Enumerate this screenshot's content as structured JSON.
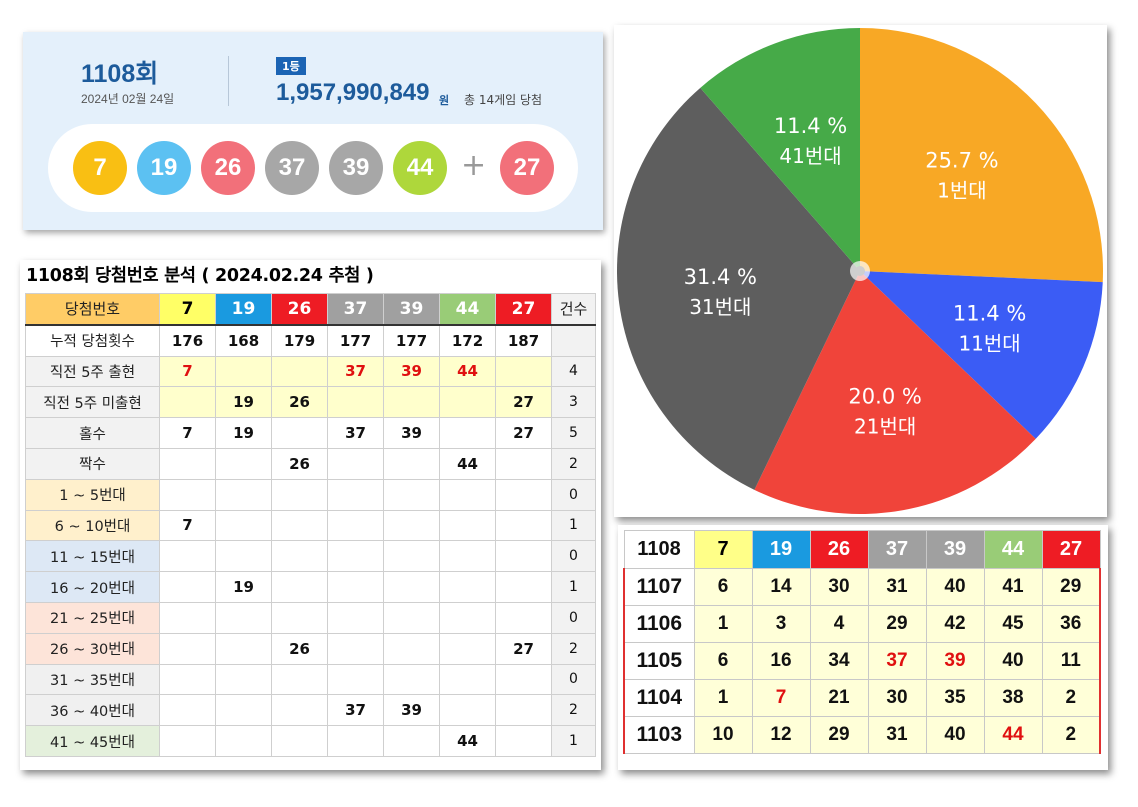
{
  "result": {
    "round": "1108회",
    "date": "2024년 02월 24일",
    "rank_badge": "1등",
    "prize": "1,957,990,849",
    "prize_unit": "원",
    "winners": "총 14게임 당첨",
    "plus": "+",
    "balls": [
      {
        "n": "7",
        "color": "#f9bf13"
      },
      {
        "n": "19",
        "color": "#5cc1f2"
      },
      {
        "n": "26",
        "color": "#f2707a"
      },
      {
        "n": "37",
        "color": "#a7a7a7"
      },
      {
        "n": "39",
        "color": "#a7a7a7"
      },
      {
        "n": "44",
        "color": "#aed73b"
      }
    ],
    "bonus": {
      "n": "27",
      "color": "#f2707a"
    }
  },
  "analysis": {
    "title": "1108회 당첨번호 분석 ( 2024.02.24 추첨 )",
    "header": {
      "label": "당첨번호",
      "count_label": "건수",
      "numbers": [
        {
          "n": "7",
          "bg": "#ffff66",
          "fg": "#000000"
        },
        {
          "n": "19",
          "bg": "#1a9ae0",
          "fg": "#ffffff"
        },
        {
          "n": "26",
          "bg": "#ee1c24",
          "fg": "#ffffff"
        },
        {
          "n": "37",
          "bg": "#a0a0a0",
          "fg": "#ffffff"
        },
        {
          "n": "39",
          "bg": "#a0a0a0",
          "fg": "#ffffff"
        },
        {
          "n": "44",
          "bg": "#99cc77",
          "fg": "#ffffff"
        },
        {
          "n": "27",
          "bg": "#ee1c24",
          "fg": "#ffffff"
        }
      ],
      "label_bg": "#ffcc66"
    },
    "rows": [
      {
        "label": "누적 당첨횟수",
        "label_bg": "#ffffff",
        "cell_bg": "#ffffff",
        "cells": [
          "176",
          "168",
          "179",
          "177",
          "177",
          "172",
          "187"
        ],
        "count": "",
        "red": []
      },
      {
        "label": "직전 5주 출현",
        "label_bg": "#f2f2f2",
        "cell_bg": "#ffffcc",
        "cells": [
          "7",
          "",
          "",
          "37",
          "39",
          "44",
          ""
        ],
        "count": "4",
        "red": [
          0,
          3,
          4,
          5
        ]
      },
      {
        "label": "직전 5주 미출현",
        "label_bg": "#f2f2f2",
        "cell_bg": "#ffffcc",
        "cells": [
          "",
          "19",
          "26",
          "",
          "",
          "",
          "27"
        ],
        "count": "3",
        "red": []
      },
      {
        "label": "홀수",
        "label_bg": "#f2f2f2",
        "cell_bg": "#ffffff",
        "cells": [
          "7",
          "19",
          "",
          "37",
          "39",
          "",
          "27"
        ],
        "count": "5",
        "red": []
      },
      {
        "label": "짝수",
        "label_bg": "#f2f2f2",
        "cell_bg": "#ffffff",
        "cells": [
          "",
          "",
          "26",
          "",
          "",
          "44",
          ""
        ],
        "count": "2",
        "red": []
      },
      {
        "label": "1 ~ 5번대",
        "label_bg": "#fff0cc",
        "cell_bg": "#ffffff",
        "cells": [
          "",
          "",
          "",
          "",
          "",
          "",
          ""
        ],
        "count": "0",
        "red": []
      },
      {
        "label": "6 ~ 10번대",
        "label_bg": "#fff0cc",
        "cell_bg": "#ffffff",
        "cells": [
          "7",
          "",
          "",
          "",
          "",
          "",
          ""
        ],
        "count": "1",
        "red": []
      },
      {
        "label": "11 ~ 15번대",
        "label_bg": "#dde8f5",
        "cell_bg": "#ffffff",
        "cells": [
          "",
          "",
          "",
          "",
          "",
          "",
          ""
        ],
        "count": "0",
        "red": []
      },
      {
        "label": "16 ~ 20번대",
        "label_bg": "#dde8f5",
        "cell_bg": "#ffffff",
        "cells": [
          "",
          "19",
          "",
          "",
          "",
          "",
          ""
        ],
        "count": "1",
        "red": []
      },
      {
        "label": "21 ~ 25번대",
        "label_bg": "#fde4d9",
        "cell_bg": "#ffffff",
        "cells": [
          "",
          "",
          "",
          "",
          "",
          "",
          ""
        ],
        "count": "0",
        "red": []
      },
      {
        "label": "26 ~ 30번대",
        "label_bg": "#fde4d9",
        "cell_bg": "#ffffff",
        "cells": [
          "",
          "",
          "26",
          "",
          "",
          "",
          "27"
        ],
        "count": "2",
        "red": []
      },
      {
        "label": "31 ~ 35번대",
        "label_bg": "#f0f0f0",
        "cell_bg": "#ffffff",
        "cells": [
          "",
          "",
          "",
          "",
          "",
          "",
          ""
        ],
        "count": "0",
        "red": []
      },
      {
        "label": "36 ~ 40번대",
        "label_bg": "#f0f0f0",
        "cell_bg": "#ffffff",
        "cells": [
          "",
          "",
          "",
          "37",
          "39",
          "",
          ""
        ],
        "count": "2",
        "red": []
      },
      {
        "label": "41 ~ 45번대",
        "label_bg": "#e4f0dc",
        "cell_bg": "#ffffff",
        "cells": [
          "",
          "",
          "",
          "",
          "",
          "44",
          ""
        ],
        "count": "1",
        "red": []
      }
    ]
  },
  "chart_data": {
    "type": "pie",
    "slices": [
      {
        "label": "25.7 %",
        "sublabel": "1번대",
        "value": 25.7,
        "color": "#f8a825"
      },
      {
        "label": "11.4 %",
        "sublabel": "11번대",
        "value": 11.4,
        "color": "#3b5cf5"
      },
      {
        "label": "20.0 %",
        "sublabel": "21번대",
        "value": 20.0,
        "color": "#f0443a"
      },
      {
        "label": "31.4 %",
        "sublabel": "31번대",
        "value": 31.4,
        "color": "#5e5e5e"
      },
      {
        "label": "11.4 %",
        "sublabel": "41번대",
        "value": 11.4,
        "color": "#46aa48"
      }
    ]
  },
  "recent": {
    "header_round": "1108",
    "header_numbers": [
      {
        "n": "7",
        "bg": "#ffff88",
        "fg": "#000000"
      },
      {
        "n": "19",
        "bg": "#1a9ae0",
        "fg": "#ffffff"
      },
      {
        "n": "26",
        "bg": "#ee1c24",
        "fg": "#ffffff"
      },
      {
        "n": "37",
        "bg": "#a0a0a0",
        "fg": "#ffffff"
      },
      {
        "n": "39",
        "bg": "#a0a0a0",
        "fg": "#ffffff"
      },
      {
        "n": "44",
        "bg": "#99cc77",
        "fg": "#ffffff"
      },
      {
        "n": "27",
        "bg": "#ee1c24",
        "fg": "#ffffff"
      }
    ],
    "rows": [
      {
        "round": "1107",
        "nums": [
          "6",
          "14",
          "30",
          "31",
          "40",
          "41",
          "29"
        ],
        "red": []
      },
      {
        "round": "1106",
        "nums": [
          "1",
          "3",
          "4",
          "29",
          "42",
          "45",
          "36"
        ],
        "red": []
      },
      {
        "round": "1105",
        "nums": [
          "6",
          "16",
          "34",
          "37",
          "39",
          "40",
          "11"
        ],
        "red": [
          3,
          4
        ]
      },
      {
        "round": "1104",
        "nums": [
          "1",
          "7",
          "21",
          "30",
          "35",
          "38",
          "2"
        ],
        "red": [
          1
        ]
      },
      {
        "round": "1103",
        "nums": [
          "10",
          "12",
          "29",
          "31",
          "40",
          "44",
          "2"
        ],
        "red": [
          5
        ]
      }
    ]
  }
}
